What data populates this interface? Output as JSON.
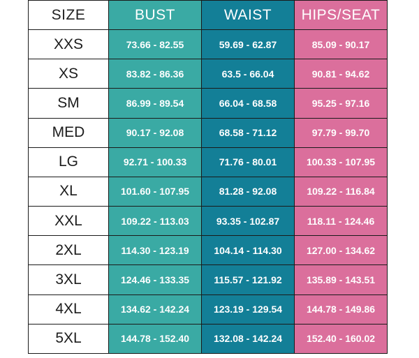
{
  "headers": {
    "size": "SIZE",
    "bust": "BUST",
    "waist": "WAIST",
    "hips": "HIPS/SEAT"
  },
  "rows": [
    {
      "size": "XXS",
      "bust": "73.66 - 82.55",
      "waist": "59.69 - 62.87",
      "hips": "85.09 - 90.17"
    },
    {
      "size": "XS",
      "bust": "83.82 - 86.36",
      "waist": "63.5 - 66.04",
      "hips": "90.81 - 94.62"
    },
    {
      "size": "SM",
      "bust": "86.99 - 89.54",
      "waist": "66.04 - 68.58",
      "hips": "95.25 - 97.16"
    },
    {
      "size": "MED",
      "bust": "90.17 - 92.08",
      "waist": "68.58 - 71.12",
      "hips": "97.79 - 99.70"
    },
    {
      "size": "LG",
      "bust": "92.71 - 100.33",
      "waist": "71.76 - 80.01",
      "hips": "100.33 - 107.95"
    },
    {
      "size": "XL",
      "bust": "101.60 - 107.95",
      "waist": "81.28 - 92.08",
      "hips": "109.22 - 116.84"
    },
    {
      "size": "XXL",
      "bust": "109.22 - 113.03",
      "waist": "93.35 - 102.87",
      "hips": "118.11 - 124.46"
    },
    {
      "size": "2XL",
      "bust": "114.30 - 123.19",
      "waist": "104.14 - 114.30",
      "hips": "127.00 - 134.62"
    },
    {
      "size": "3XL",
      "bust": "124.46 - 133.35",
      "waist": "115.57 - 121.92",
      "hips": "135.89 - 143.51"
    },
    {
      "size": "4XL",
      "bust": "134.62 - 142.24",
      "waist": "123.19 - 129.54",
      "hips": "144.78 - 149.86"
    },
    {
      "size": "5XL",
      "bust": "144.78 - 152.40",
      "waist": "132.08 - 142.24",
      "hips": "152.40 - 160.02"
    }
  ],
  "colors": {
    "bust": "#3aaaa4",
    "waist": "#137f97",
    "hips": "#db6f9c"
  }
}
